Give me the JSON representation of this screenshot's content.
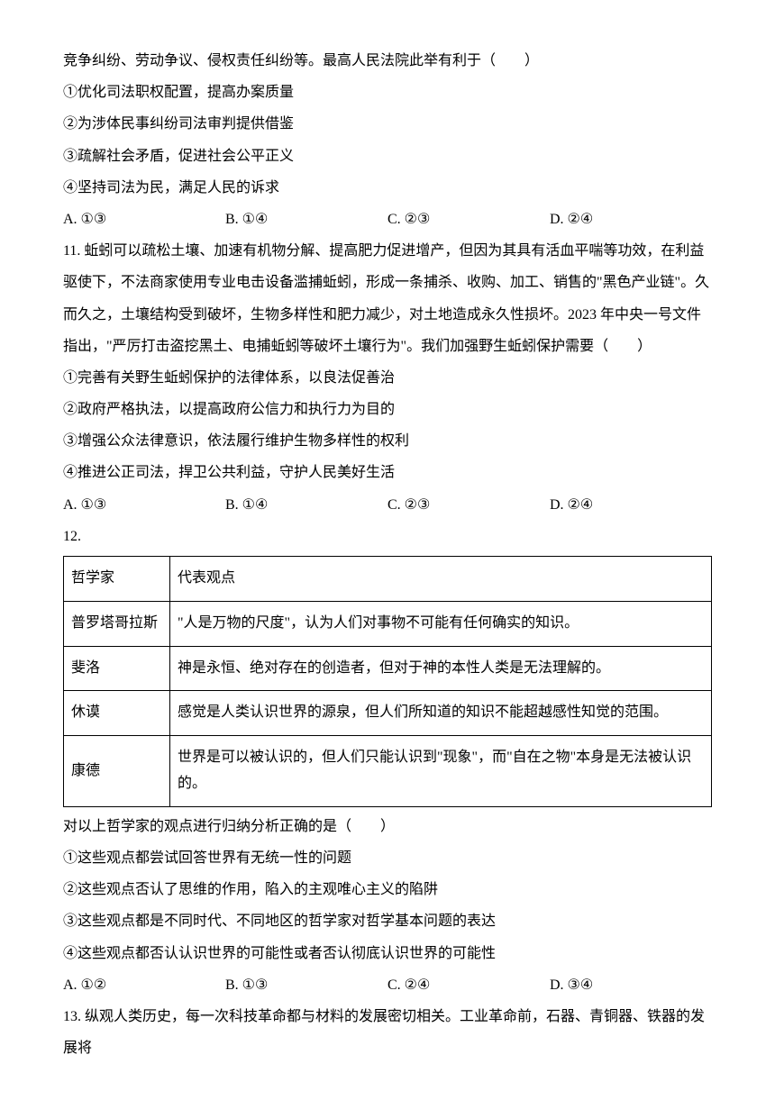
{
  "q10": {
    "line1": "竞争纠纷、劳动争议、侵权责任纠纷等。最高人民法院此举有利于（　　）",
    "s1": "①优化司法职权配置，提高办案质量",
    "s2": "②为涉体民事纠纷司法审判提供借鉴",
    "s3": "③疏解社会矛盾，促进社会公平正义",
    "s4": "④坚持司法为民，满足人民的诉求",
    "optA": "A. ①③",
    "optB": "B. ①④",
    "optC": "C. ②③",
    "optD": "D. ②④"
  },
  "q11": {
    "stem": "11. 蚯蚓可以疏松土壤、加速有机物分解、提高肥力促进增产，但因为其具有活血平喘等功效，在利益驱使下，不法商家使用专业电击设备滥捕蚯蚓，形成一条捕杀、收购、加工、销售的\"黑色产业链\"。久而久之，土壤结构受到破坏，生物多样性和肥力减少，对土地造成永久性损坏。2023 年中央一号文件指出，\"严厉打击盗挖黑土、电捕蚯蚓等破坏土壤行为\"。我们加强野生蚯蚓保护需要（　　）",
    "s1": "①完善有关野生蚯蚓保护的法律体系，以良法促善治",
    "s2": "②政府严格执法，以提高政府公信力和执行力为目的",
    "s3": "③增强公众法律意识，依法履行维护生物多样性的权利",
    "s4": "④推进公正司法，捍卫公共利益，守护人民美好生活",
    "optA": "A. ①③",
    "optB": "B. ①④",
    "optC": "C. ②③",
    "optD": "D. ②④"
  },
  "q12": {
    "num": "12.",
    "th1": "哲学家",
    "th2": "代表观点",
    "r1c1": "普罗塔哥拉斯",
    "r1c2": "\"人是万物的尺度\"，认为人们对事物不可能有任何确实的知识。",
    "r2c1": "斐洛",
    "r2c2": "神是永恒、绝对存在的创造者，但对于神的本性人类是无法理解的。",
    "r3c1": "休谟",
    "r3c2": "感觉是人类认识世界的源泉，但人们所知道的知识不能超越感性知觉的范围。",
    "r4c1": "康德",
    "r4c2": "世界是可以被认识的，但人们只能认识到\"现象\"，而\"自在之物\"本身是无法被认识的。",
    "after": "对以上哲学家的观点进行归纳分析正确的是（　　）",
    "s1": "①这些观点都尝试回答世界有无统一性的问题",
    "s2": "②这些观点否认了思维的作用，陷入的主观唯心主义的陷阱",
    "s3": "③这些观点都是不同时代、不同地区的哲学家对哲学基本问题的表达",
    "s4": "④这些观点都否认认识世界的可能性或者否认彻底认识世界的可能性",
    "optA": "A. ①②",
    "optB": "B. ①③",
    "optC": "C. ②④",
    "optD": "D. ③④"
  },
  "q13": {
    "stem": "13. 纵观人类历史，每一次科技革命都与材料的发展密切相关。工业革命前，石器、青铜器、铁器的发展将"
  }
}
